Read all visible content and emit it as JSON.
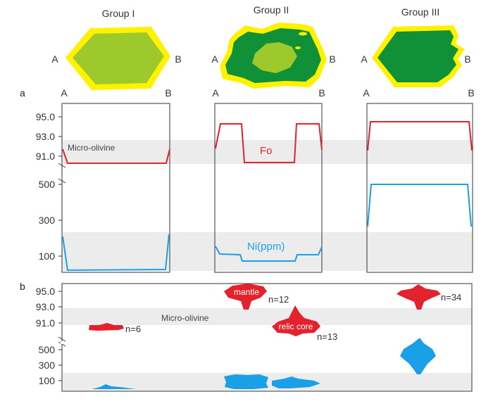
{
  "groups": [
    {
      "title": "Group I",
      "end_a": "A",
      "end_b": "B"
    },
    {
      "title": "Group II",
      "end_a": "A",
      "end_b": "B"
    },
    {
      "title": "Group III",
      "end_a": "A",
      "end_b": "B"
    }
  ],
  "panel_a": {
    "label": "a",
    "fo_ticks": [
      "95.0",
      "93.0",
      "91.0"
    ],
    "ni_ticks": [
      "500",
      "300",
      "100"
    ],
    "micro_olivine_label": "Micro-olivine",
    "fo_label": "Fo",
    "ni_label": "Ni(ppm)"
  },
  "panel_b": {
    "label": "b",
    "fo_ticks": [
      "95.0",
      "93.0",
      "91.0"
    ],
    "ni_ticks": [
      "500",
      "300",
      "100"
    ],
    "micro_olivine_label": "Micro-olivine",
    "mantle_label": "mantle",
    "relic_core_label": "relic core",
    "counts": [
      "n=6",
      "n=12",
      "n=13",
      "n=34"
    ]
  },
  "colors": {
    "fo_red": "#e4222e",
    "ni_blue": "#1aa0e6",
    "rim_yellow": "#fff200",
    "group1_fill": "#9ec92c",
    "group2_fill": "#109138",
    "group2_core": "#9ec92c",
    "group3_fill": "#109138",
    "band_gray": "#ececec"
  }
}
